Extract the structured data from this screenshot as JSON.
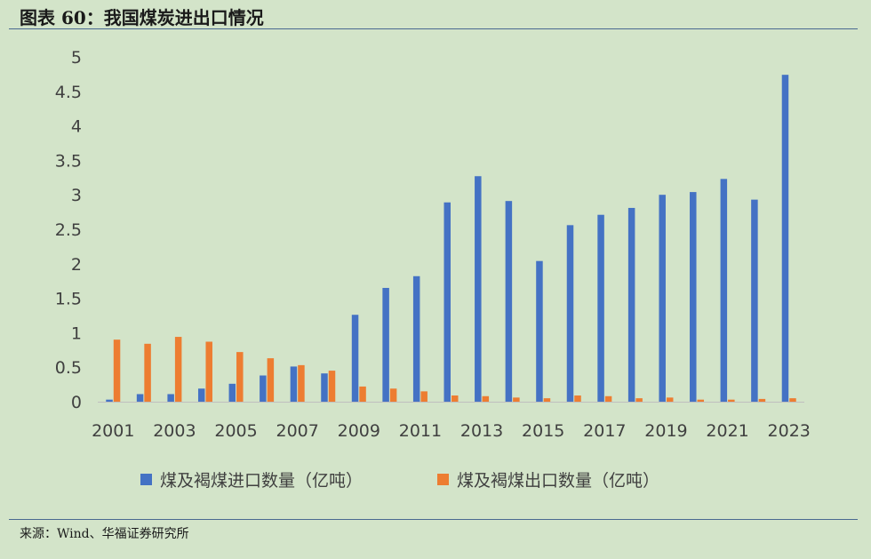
{
  "title": "图表 60：我国煤炭进出口情况",
  "source": "来源：Wind、华福证券研究所",
  "chart_data": {
    "type": "bar",
    "categories": [
      "2001",
      "2002",
      "2003",
      "2004",
      "2005",
      "2006",
      "2007",
      "2008",
      "2009",
      "2010",
      "2011",
      "2012",
      "2013",
      "2014",
      "2015",
      "2016",
      "2017",
      "2018",
      "2019",
      "2020",
      "2021",
      "2022",
      "2023"
    ],
    "x_tick_labels": [
      "2001",
      "2003",
      "2005",
      "2007",
      "2009",
      "2011",
      "2013",
      "2015",
      "2017",
      "2019",
      "2021",
      "2023"
    ],
    "y_tick_labels": [
      "0",
      "0.5",
      "1",
      "1.5",
      "2",
      "2.5",
      "3",
      "3.5",
      "4",
      "4.5",
      "5"
    ],
    "ylim": [
      0,
      5
    ],
    "series": [
      {
        "name": "煤及褐煤进口数量（亿吨）",
        "color": "#4472c4",
        "values": [
          0.03,
          0.11,
          0.11,
          0.19,
          0.26,
          0.38,
          0.51,
          0.41,
          1.26,
          1.65,
          1.82,
          2.89,
          3.27,
          2.91,
          2.04,
          2.56,
          2.71,
          2.81,
          3.0,
          3.04,
          3.23,
          2.93,
          4.74
        ]
      },
      {
        "name": "煤及褐煤出口数量（亿吨）",
        "color": "#ed7d31",
        "values": [
          0.9,
          0.84,
          0.94,
          0.87,
          0.72,
          0.63,
          0.53,
          0.45,
          0.22,
          0.19,
          0.15,
          0.09,
          0.08,
          0.06,
          0.05,
          0.09,
          0.08,
          0.05,
          0.06,
          0.03,
          0.03,
          0.04,
          0.05
        ]
      }
    ],
    "legend_position": "bottom"
  }
}
